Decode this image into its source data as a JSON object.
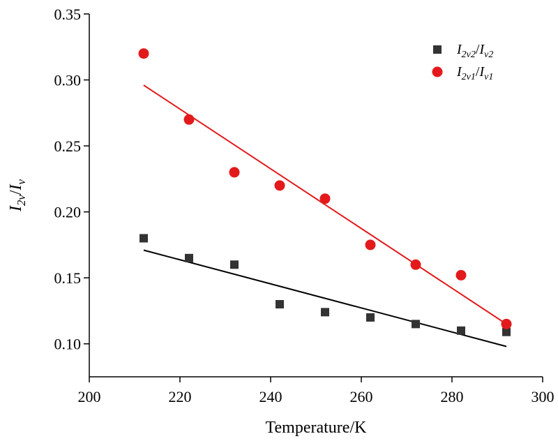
{
  "chart_data": {
    "type": "scatter",
    "xlabel": "Temperature/K",
    "ylabel": {
      "base": "I",
      "sub": "2v",
      "slash": "/",
      "base2": "I",
      "sub2": "v"
    },
    "xlim": [
      200,
      300
    ],
    "ylim": [
      0.075,
      0.35
    ],
    "xticks": [
      "200",
      "220",
      "240",
      "260",
      "280",
      "300"
    ],
    "yticks": [
      "0.10",
      "0.15",
      "0.20",
      "0.25",
      "0.30",
      "0.35"
    ],
    "series": [
      {
        "name": "I2v2/Iv2",
        "legend": {
          "base": "I",
          "sub": "2v2",
          "slash": "/",
          "base2": "I",
          "sub2": "v2"
        },
        "marker": "square",
        "color": "#333333",
        "x": [
          212,
          222,
          232,
          242,
          252,
          262,
          272,
          282,
          292
        ],
        "y": [
          0.18,
          0.165,
          0.16,
          0.13,
          0.124,
          0.12,
          0.115,
          0.11,
          0.109
        ],
        "fit": {
          "x": [
            212,
            292
          ],
          "y": [
            0.171,
            0.098
          ],
          "color": "#000000"
        }
      },
      {
        "name": "I2v1/Iv1",
        "legend": {
          "base": "I",
          "sub": "2v1",
          "slash": "/",
          "base2": "I",
          "sub2": "v1"
        },
        "marker": "circle",
        "color": "#e31a1c",
        "x": [
          212,
          222,
          232,
          242,
          252,
          262,
          272,
          282,
          292
        ],
        "y": [
          0.32,
          0.27,
          0.23,
          0.22,
          0.21,
          0.175,
          0.16,
          0.152,
          0.115
        ],
        "fit": {
          "x": [
            212,
            292
          ],
          "y": [
            0.296,
            0.115
          ],
          "color": "#e31a1c"
        }
      }
    ],
    "legend_position": "top-right",
    "grid": false
  }
}
